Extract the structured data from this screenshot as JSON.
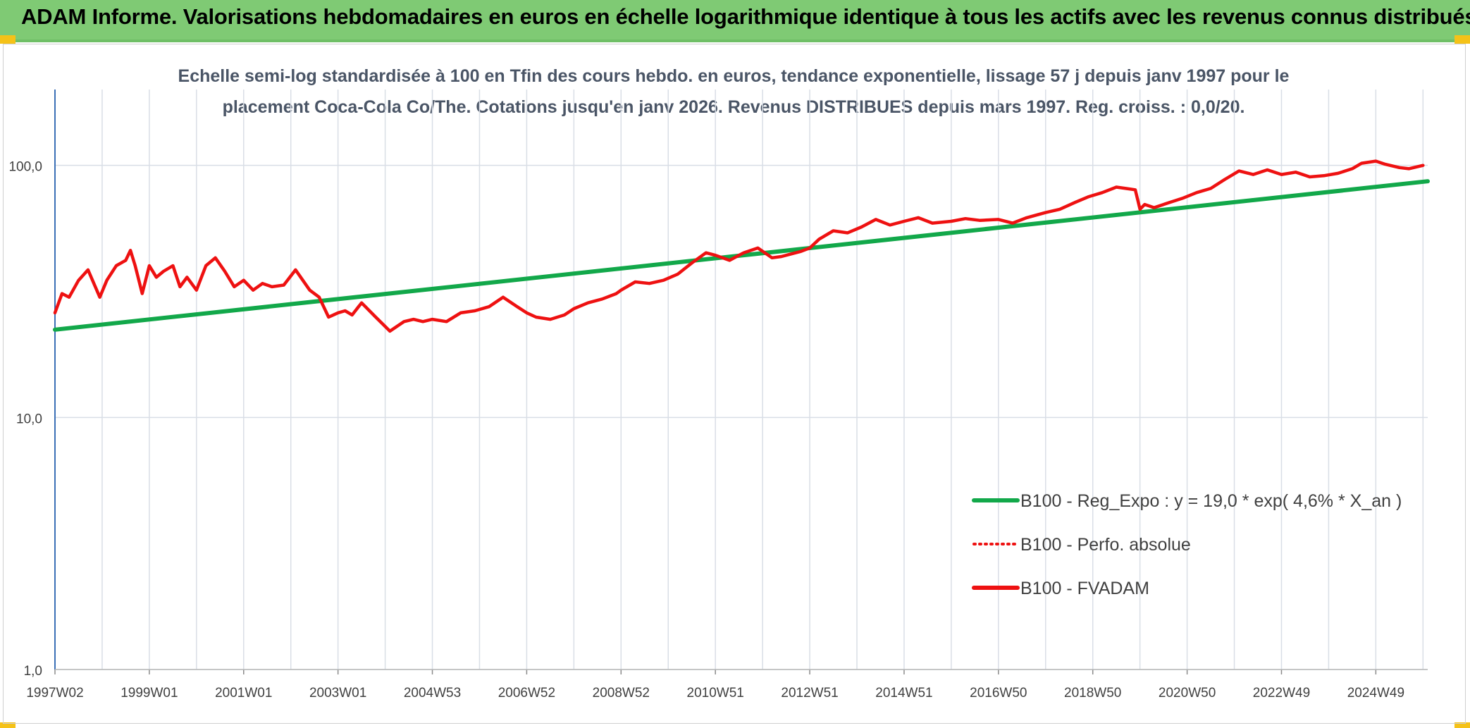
{
  "header": {
    "title": "ADAM Informe. Valorisations hebdomadaires en euros en échelle logarithmique identique à tous les actifs avec les revenus connus distribués"
  },
  "colors": {
    "header_bg": "#7fca74",
    "corner_accent": "#f5c218",
    "trend_line": "#12a84a",
    "fvadam_line": "#ee1111",
    "perfo_line": "#ee1111",
    "grid": "#d9dee6",
    "axis": "#3b6fb6",
    "subtitle_text": "#4a5566"
  },
  "chart_data": {
    "type": "line",
    "title": "Echelle semi-log standardisée à 100 en Tfin des cours hebdo. en euros, tendance exponentielle, lissage 57 j depuis janv 1997 pour le placement Coca-Cola Co/The. Cotations jusqu'en janv 2026. Revenus DISTRIBUES depuis mars 1997. Reg. croiss. : 0,0/20.",
    "y_scale": "log",
    "ylim": [
      1,
      200
    ],
    "y_ticks": [
      "1,0",
      "10,0",
      "100,0"
    ],
    "y_tick_values": [
      1,
      10,
      100
    ],
    "x_range": [
      1997.0,
      2026.1
    ],
    "x_tick_labels": [
      "1997W02",
      "1999W01",
      "2001W01",
      "2003W01",
      "2004W53",
      "2006W52",
      "2008W52",
      "2010W51",
      "2012W51",
      "2014W51",
      "2016W50",
      "2018W50",
      "2020W50",
      "2022W49",
      "2024W49"
    ],
    "x_tick_years": [
      1997.0,
      1999.0,
      2001.0,
      2003.0,
      2005.0,
      2007.0,
      2009.0,
      2011.0,
      2013.0,
      2015.0,
      2017.0,
      2019.0,
      2021.0,
      2023.0,
      2025.0
    ],
    "grid": true,
    "legend_position": "bottom-right",
    "series": [
      {
        "name": "B100 - Reg_Expo : y = 19,0 * exp( 4,6% *  X_an )",
        "style": "solid",
        "color": "#12a84a",
        "x": [
          1997.0,
          2026.1
        ],
        "y": [
          22.3,
          86.5
        ]
      },
      {
        "name": "B100 - Perfo. absolue",
        "style": "dotted",
        "color": "#ee1111",
        "x": [],
        "y": []
      },
      {
        "name": "B100 - FVADAM",
        "style": "solid",
        "color": "#ee1111",
        "x": [
          1997.0,
          1997.15,
          1997.3,
          1997.5,
          1997.7,
          1997.95,
          1998.1,
          1998.3,
          1998.5,
          1998.6,
          1998.7,
          1998.85,
          1999.0,
          1999.15,
          1999.3,
          1999.5,
          1999.65,
          1999.8,
          2000.0,
          2000.2,
          2000.4,
          2000.6,
          2000.8,
          2001.0,
          2001.2,
          2001.4,
          2001.6,
          2001.85,
          2002.1,
          2002.4,
          2002.6,
          2002.8,
          2003.0,
          2003.15,
          2003.3,
          2003.5,
          2003.8,
          2004.1,
          2004.4,
          2004.6,
          2004.8,
          2005.0,
          2005.3,
          2005.6,
          2005.9,
          2006.2,
          2006.5,
          2006.8,
          2007.0,
          2007.2,
          2007.5,
          2007.8,
          2008.0,
          2008.3,
          2008.6,
          2008.9,
          2009.0,
          2009.3,
          2009.6,
          2009.9,
          2010.2,
          2010.5,
          2010.8,
          2011.0,
          2011.3,
          2011.6,
          2011.9,
          2012.2,
          2012.4,
          2012.6,
          2012.8,
          2013.0,
          2013.2,
          2013.5,
          2013.8,
          2014.1,
          2014.4,
          2014.7,
          2015.0,
          2015.3,
          2015.6,
          2016.0,
          2016.3,
          2016.6,
          2017.0,
          2017.3,
          2017.6,
          2018.0,
          2018.3,
          2018.6,
          2018.9,
          2019.2,
          2019.5,
          2019.7,
          2019.9,
          2020.0,
          2020.1,
          2020.3,
          2020.6,
          2020.9,
          2021.2,
          2021.5,
          2021.8,
          2022.1,
          2022.4,
          2022.7,
          2023.0,
          2023.3,
          2023.6,
          2023.9,
          2024.2,
          2024.5,
          2024.7,
          2025.0,
          2025.2,
          2025.5,
          2025.7,
          2026.0
        ],
        "y": [
          26.0,
          31.0,
          30.0,
          35.0,
          38.5,
          30.0,
          35.0,
          40.0,
          42.0,
          46.0,
          40.0,
          31.0,
          40.0,
          36.0,
          38.0,
          40.0,
          33.0,
          36.0,
          32.0,
          40.0,
          43.0,
          38.0,
          33.0,
          35.0,
          32.0,
          34.0,
          33.0,
          33.5,
          38.5,
          32.0,
          30.0,
          25.0,
          26.0,
          26.5,
          25.5,
          28.5,
          25.0,
          22.0,
          24.0,
          24.5,
          24.0,
          24.5,
          24.0,
          26.0,
          26.5,
          27.5,
          30.0,
          27.5,
          26.0,
          25.0,
          24.5,
          25.5,
          27.0,
          28.5,
          29.5,
          31.0,
          32.0,
          34.5,
          34.0,
          35.0,
          37.0,
          41.0,
          45.0,
          44.0,
          42.0,
          45.0,
          47.0,
          43.0,
          43.5,
          44.5,
          45.5,
          47.0,
          51.0,
          55.0,
          54.0,
          57.0,
          61.0,
          58.0,
          60.0,
          62.0,
          59.0,
          60.0,
          61.5,
          60.5,
          61.0,
          59.0,
          62.0,
          65.0,
          67.0,
          71.0,
          75.0,
          78.0,
          82.0,
          81.0,
          80.0,
          67.0,
          70.0,
          68.0,
          71.0,
          74.0,
          78.0,
          81.0,
          88.0,
          95.0,
          92.0,
          96.0,
          92.0,
          94.0,
          90.0,
          91.0,
          93.0,
          97.0,
          102.0,
          104.0,
          101.0,
          98.0,
          97.0,
          100.0
        ]
      }
    ]
  }
}
